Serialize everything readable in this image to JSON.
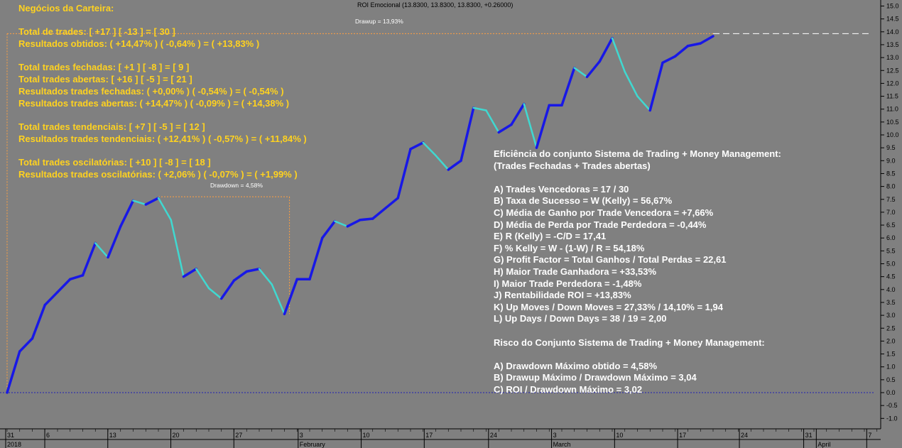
{
  "chart_data": {
    "type": "line",
    "title": "ROI Emocional (13.8300, 13.8300, 13.8300, +0.26000)",
    "y_axis": {
      "min": -1.0,
      "max": 15.0,
      "step": 0.5,
      "side": "right"
    },
    "y_ticks": [
      "15.0",
      "14.5",
      "14.0",
      "13.5",
      "13.0",
      "12.5",
      "12.0",
      "11.5",
      "11.0",
      "10.5",
      "10.0",
      "9.5",
      "9.0",
      "8.5",
      "8.0",
      "7.5",
      "7.0",
      "6.5",
      "6.0",
      "5.5",
      "5.0",
      "4.5",
      "4.0",
      "3.5",
      "3.0",
      "2.5",
      "2.0",
      "1.5",
      "1.0",
      "0.5",
      "0.0",
      "-0.5",
      "-1.0"
    ],
    "x_ticks": [
      {
        "label": "31",
        "sub": "2018",
        "i": 0
      },
      {
        "label": "6",
        "i": 3.1
      },
      {
        "label": "13",
        "i": 8.1
      },
      {
        "label": "20",
        "i": 13.1
      },
      {
        "label": "27",
        "i": 18.1
      },
      {
        "label": "3",
        "sub": "February",
        "i": 23.2
      },
      {
        "label": "10",
        "i": 28.2
      },
      {
        "label": "17",
        "i": 33.2
      },
      {
        "label": "24",
        "i": 38.3
      },
      {
        "label": "3",
        "sub": "March",
        "i": 43.3
      },
      {
        "label": "10",
        "i": 48.3
      },
      {
        "label": "17",
        "i": 53.3
      },
      {
        "label": "24",
        "i": 58.2
      },
      {
        "label": "31",
        "i": 63.3
      },
      {
        "label": "April",
        "sub": "April",
        "i": 64.3
      },
      {
        "label": "7",
        "i": 68.3
      }
    ],
    "series": [
      {
        "values": [
          0.0,
          1.6,
          2.1,
          3.4,
          3.9,
          4.4,
          4.55,
          5.8,
          5.25,
          6.45,
          7.45,
          7.3,
          7.55,
          6.7,
          4.5,
          4.8,
          4.05,
          3.65,
          4.35,
          4.7,
          4.8,
          4.2,
          3.05,
          4.4,
          4.4,
          6.0,
          6.65,
          6.45,
          6.7,
          6.75,
          7.15,
          7.55,
          9.45,
          9.7,
          9.2,
          8.65,
          9.0,
          11.05,
          10.95,
          10.1,
          10.4,
          11.2,
          9.5,
          11.15,
          11.15,
          12.6,
          12.25,
          12.85,
          13.75,
          12.45,
          11.5,
          10.95,
          12.8,
          13.05,
          13.45,
          13.55,
          13.83
        ],
        "colors": {
          "up": "#1818e6",
          "down": "#40d8d0"
        }
      }
    ],
    "annotations": {
      "drawup_label": "Drawup = 13,93%",
      "drawdown_label": "Drawdown = 4,58%",
      "current_level": 13.93,
      "zero_level": 0.0,
      "drawdown_peak": 7.6,
      "drawdown_trough": 3.05
    },
    "colors": {
      "background": "#808080",
      "axis_text": "#000000",
      "up": "#1818e6",
      "down": "#40d8d0",
      "guide": "#ffa040",
      "zero_line": "#1e1eb4"
    },
    "grid": false
  },
  "left_panel": {
    "title": "Negócios da Carteira:",
    "lines": [
      "Total de trades: [ +17 ] [ -13 ] = [ 30 ]",
      "Resultados obtidos: ( +14,47% ) ( -0,64% ) = ( +13,83% )",
      "",
      "Total trades fechadas: [ +1 ] [ -8 ] = [ 9 ]",
      "Total trades abertas: [ +16 ] [ -5 ] = [ 21 ]",
      "Resultados trades fechadas: ( +0,00% ) ( -0,54% ) = ( -0,54% )",
      "Resultados trades abertas: ( +14,47% ) ( -0,09% ) = ( +14,38% )",
      "",
      "Total trades tendenciais: [ +7 ] [ -5 ] = [ 12 ]",
      "Resultados trades tendenciais: ( +12,41% ) ( -0,57% ) = ( +11,84% )",
      "",
      "Total trades oscilatórias: [ +10 ] [ -8 ] = [ 18 ]",
      "Resultados trades oscilatórias: ( +2,06% ) ( -0,07% ) = ( +1,99% )"
    ]
  },
  "right_panel": {
    "lines": [
      "Eficiência do conjunto Sistema de Trading + Money Management:",
      "(Trades Fechadas + Trades abertas)",
      "",
      "A) Trades Vencedoras = 17 / 30",
      "B) Taxa de Sucesso = W (Kelly) = 56,67%",
      "C) Média de Ganho por Trade Vencedora = +7,66%",
      "D) Média de Perda por Trade Perdedora = -0,44%",
      "E) R (Kelly) = -C/D = 17,41",
      "F) % Kelly = W - (1-W) / R = 54,18%",
      "G) Profit Factor = Total Ganhos / Total Perdas = 22,61",
      "H) Maior Trade Ganhadora = +33,53%",
      "I) Maior Trade Perdedora = -1,48%",
      "J) Rentabilidade ROI = +13,83%",
      "K) Up Moves / Down Moves = 27,33% / 14,10% = 1,94",
      "L) Up Days / Down Days = 38 / 19 = 2,00",
      "",
      "Risco do Conjunto Sistema de Trading + Money Management:",
      "",
      "A) Drawdown Máximo obtido = 4,58%",
      "B) Drawup Máximo / Drawdown Máximo = 3,04",
      "C) ROI / Drawdown Máximo = 3,02"
    ]
  }
}
